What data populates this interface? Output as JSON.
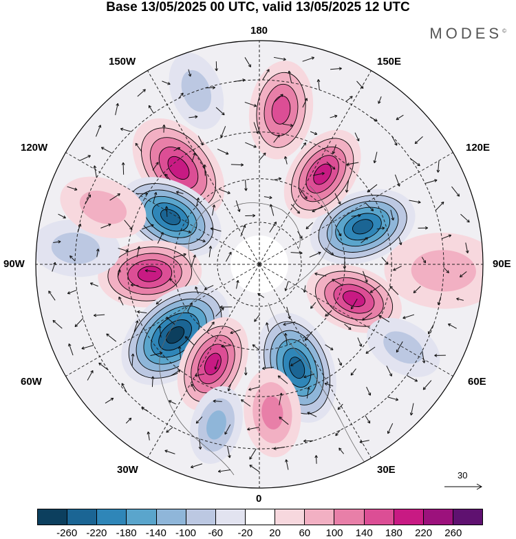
{
  "title": "Base 13/05/2025 00 UTC, valid 13/05/2025 12 UTC",
  "brand": "MODES",
  "brand_mark": "©",
  "longitude_labels": {
    "top": "180",
    "bottom": "0",
    "left": "90W",
    "right": "90E",
    "upper_left_1": "150W",
    "upper_left_2": "120W",
    "upper_right_1": "150E",
    "upper_right_2": "120E",
    "lower_left_1": "60W",
    "lower_left_2": "30W",
    "lower_right_1": "60E",
    "lower_right_2": "30E"
  },
  "reference_vector": "30",
  "colorbar": {
    "colors": [
      "#0c3f5e",
      "#1b6594",
      "#2f86b8",
      "#5aa5cc",
      "#8fb6d9",
      "#bcc8e2",
      "#e2e3f0",
      "#ffffff",
      "#f7d8de",
      "#f2b0c3",
      "#e87fa8",
      "#dc4e95",
      "#c81a83",
      "#9c117c",
      "#5f1170"
    ],
    "tick_labels": [
      "-260",
      "-220",
      "-180",
      "-140",
      "-100",
      "-60",
      "-20",
      "20",
      "60",
      "100",
      "140",
      "180",
      "220",
      "260"
    ]
  },
  "anomalies": [
    {
      "lon": 172,
      "lat": 38,
      "value": 150,
      "size": 1.0
    },
    {
      "lon": -140,
      "lat": 47,
      "value": 190,
      "size": 1.15
    },
    {
      "lon": -118,
      "lat": 55,
      "value": -230,
      "size": 1.1
    },
    {
      "lon": -85,
      "lat": 52,
      "value": 190,
      "size": 1.05
    },
    {
      "lon": -50,
      "lat": 52,
      "value": -240,
      "size": 1.25
    },
    {
      "lon": -25,
      "lat": 52,
      "value": 170,
      "size": 1.0
    },
    {
      "lon": 20,
      "lat": 52,
      "value": -220,
      "size": 1.15
    },
    {
      "lon": 70,
      "lat": 55,
      "value": 170,
      "size": 1.0
    },
    {
      "lon": 110,
      "lat": 52,
      "value": -220,
      "size": 1.1
    },
    {
      "lon": 145,
      "lat": 52,
      "value": 170,
      "size": 1.0
    },
    {
      "lon": -15,
      "lat": 35,
      "value": -110,
      "size": 0.8
    },
    {
      "lon": -95,
      "lat": 30,
      "value": -60,
      "size": 0.9
    },
    {
      "lon": -160,
      "lat": 30,
      "value": -50,
      "size": 0.8
    },
    {
      "lon": 88,
      "lat": 30,
      "value": 50,
      "size": 1.2
    },
    {
      "lon": 60,
      "lat": 35,
      "value": -50,
      "size": 0.8
    },
    {
      "lon": 5,
      "lat": 40,
      "value": 90,
      "size": 0.9
    },
    {
      "lon": -110,
      "lat": 35,
      "value": 70,
      "size": 0.9
    }
  ]
}
